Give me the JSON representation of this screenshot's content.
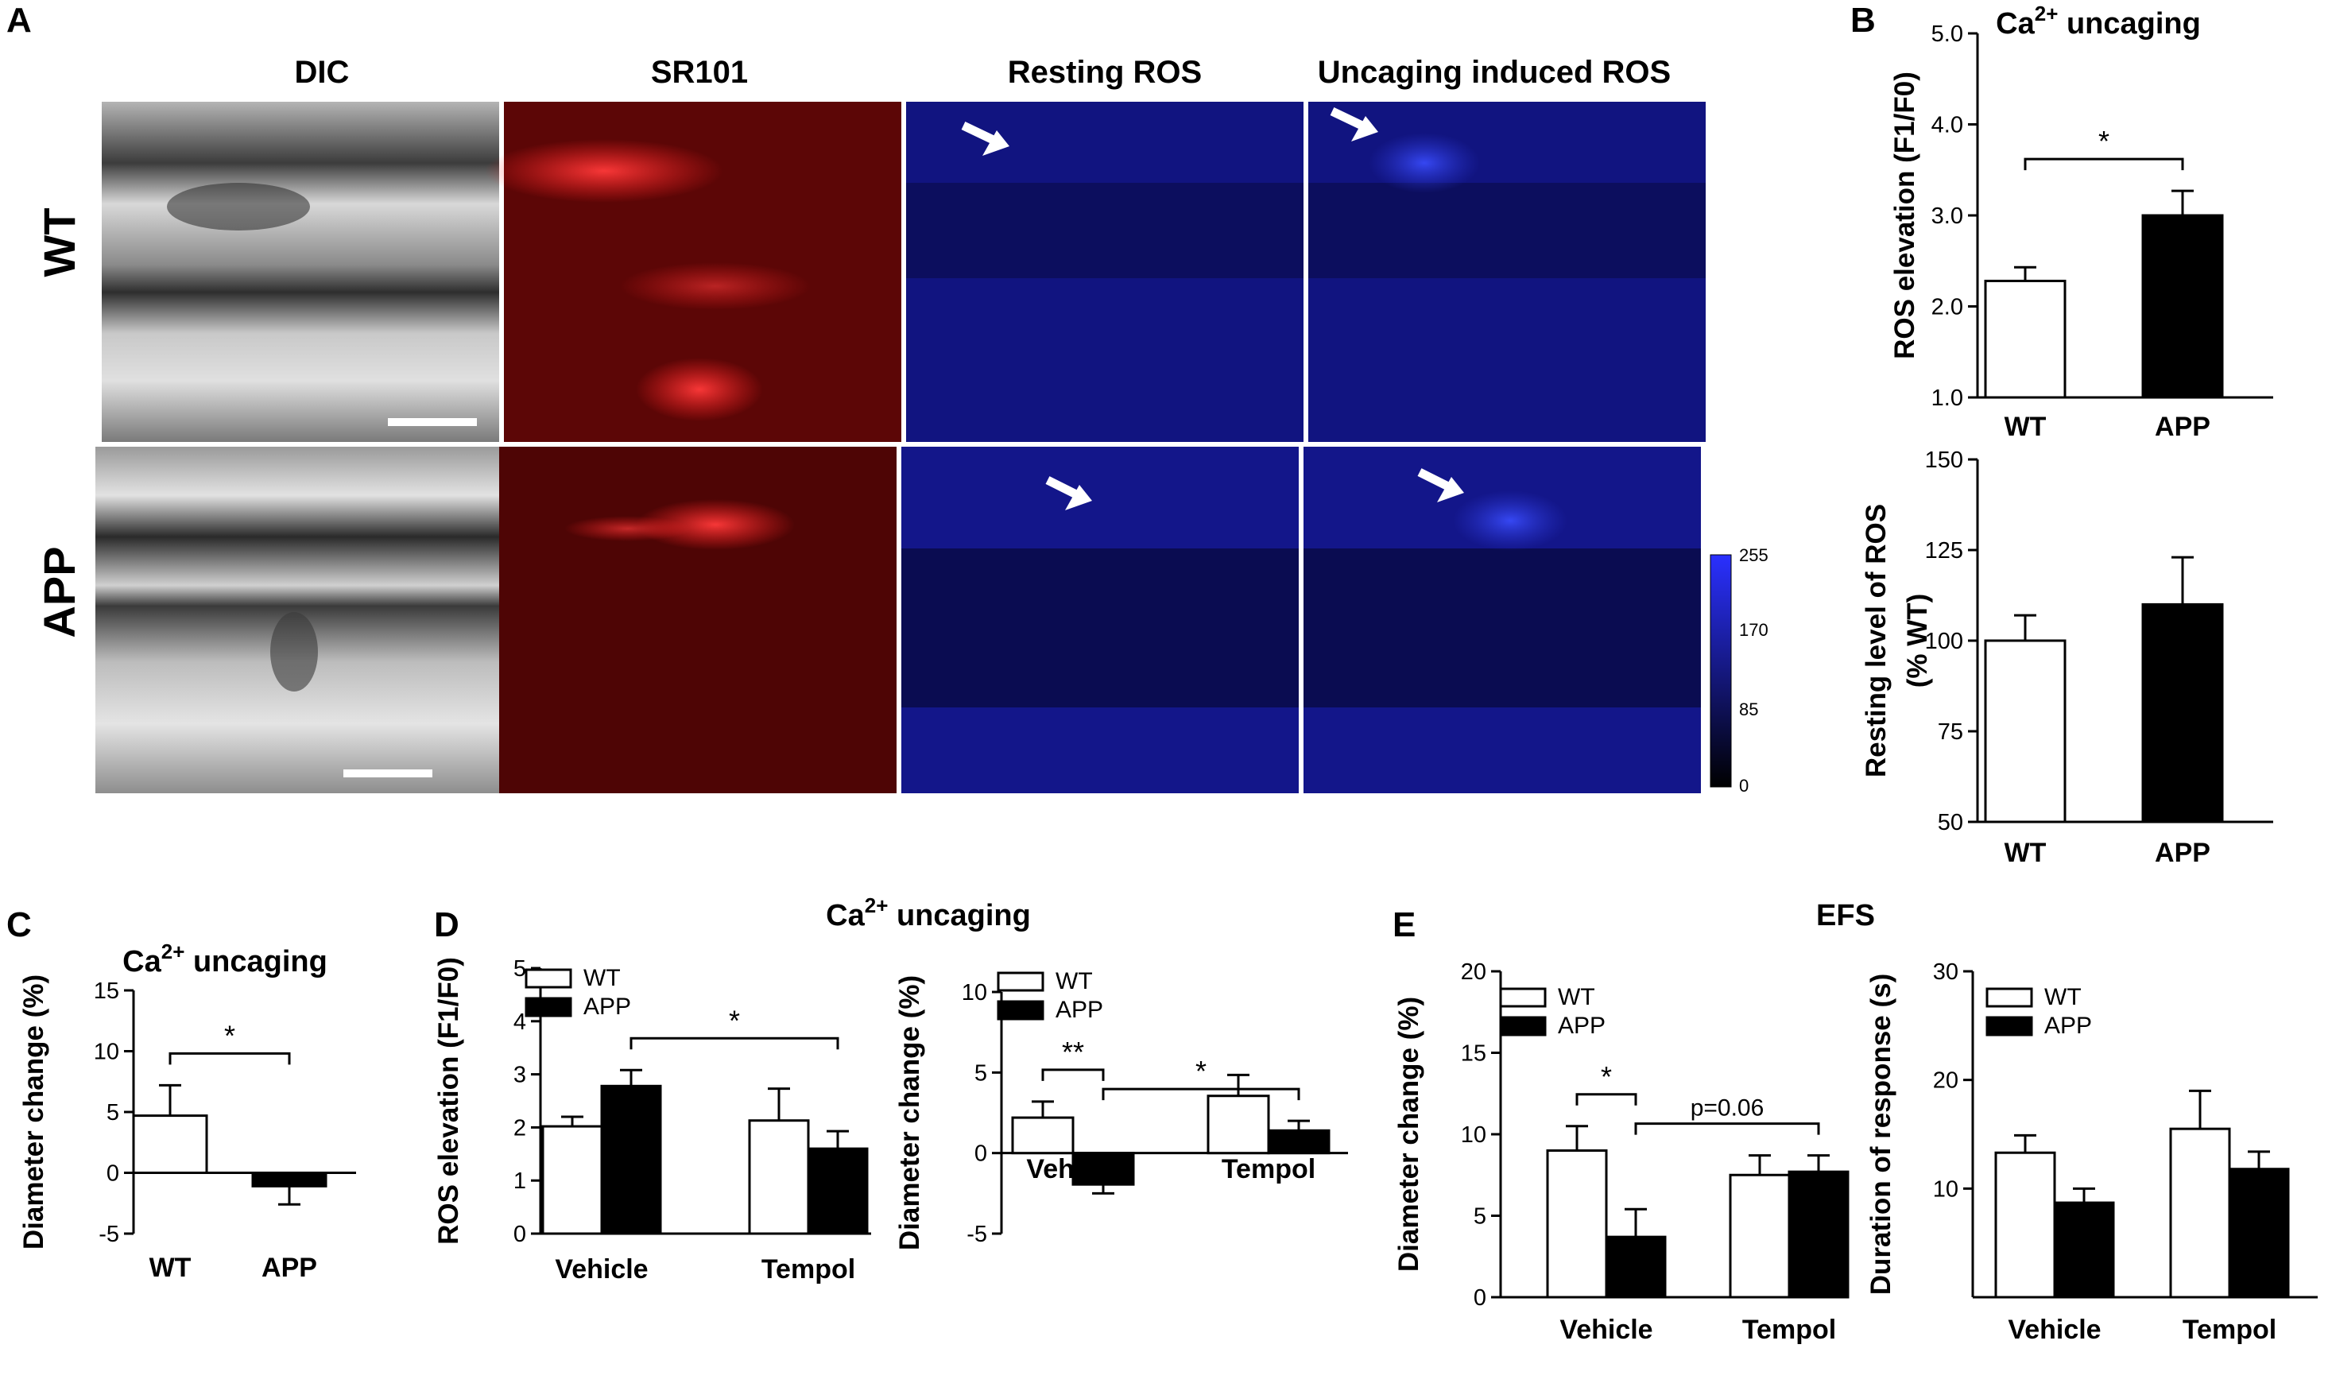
{
  "panel_letters": {
    "a": "A",
    "b": "B",
    "c": "C",
    "d": "D",
    "e": "E"
  },
  "micrographs": {
    "column_headers": [
      "DIC",
      "SR101",
      "Resting ROS",
      "Uncaging induced ROS"
    ],
    "row_labels": [
      "WT",
      "APP"
    ],
    "colorbar_ticks": [
      "255",
      "170",
      "85",
      "0"
    ],
    "colors": {
      "dic": "#9a9a9a",
      "sr101": "#b01010",
      "ros": "#15158a",
      "arrow": "#ffffff"
    }
  },
  "group_titles": {
    "d": {
      "main": "Ca",
      "sup": "2+",
      "rest": " uncaging"
    },
    "e": "EFS"
  },
  "colors": {
    "wt_fill": "#ffffff",
    "app_fill": "#000000",
    "stroke": "#000000"
  },
  "chart_data": [
    {
      "id": "B1",
      "type": "bar",
      "title": {
        "main": "Ca",
        "sup": "2+",
        "rest": " uncaging"
      },
      "ylabel": "ROS elevation (F1/F0)",
      "ylim": [
        1.0,
        5.0
      ],
      "yticks": [
        "1.0",
        "2.0",
        "3.0",
        "4.0",
        "5.0"
      ],
      "categories": [
        "WT",
        "APP"
      ],
      "values": [
        2.28,
        3.0
      ],
      "errors": [
        0.15,
        0.27
      ],
      "significance": [
        {
          "label": "*",
          "between": [
            "WT",
            "APP"
          ]
        }
      ]
    },
    {
      "id": "B2",
      "type": "bar",
      "ylabel": [
        "Resting level of ROS",
        "(% WT)"
      ],
      "ylim": [
        50,
        150
      ],
      "yticks": [
        "50",
        "75",
        "100",
        "125",
        "150"
      ],
      "categories": [
        "WT",
        "APP"
      ],
      "values": [
        100,
        110
      ],
      "errors": [
        7,
        13
      ]
    },
    {
      "id": "C",
      "type": "bar",
      "title": {
        "main": "Ca",
        "sup": "2+",
        "rest": " uncaging"
      },
      "ylabel": "Diameter change (%)",
      "ylim": [
        -5,
        15
      ],
      "yticks": [
        "-5",
        "0",
        "5",
        "10",
        "15"
      ],
      "categories": [
        "WT",
        "APP"
      ],
      "values": [
        4.7,
        -1.1
      ],
      "errors": [
        2.5,
        1.5
      ],
      "significance": [
        {
          "label": "*",
          "between": [
            "WT",
            "APP"
          ]
        }
      ]
    },
    {
      "id": "D1",
      "type": "bar",
      "ylabel": "ROS elevation (F1/F0)",
      "ylim": [
        0,
        5
      ],
      "yticks": [
        "0",
        "1",
        "2",
        "3",
        "4",
        "5"
      ],
      "categories": [
        "Vehicle",
        "Tempol"
      ],
      "series": [
        {
          "name": "WT",
          "values": [
            2.02,
            2.13
          ],
          "errors": [
            0.18,
            0.6
          ]
        },
        {
          "name": "APP",
          "values": [
            2.78,
            1.6
          ],
          "errors": [
            0.3,
            0.33
          ]
        }
      ],
      "significance": [
        {
          "label": "*",
          "between": [
            "Vehicle APP",
            "Tempol APP"
          ]
        }
      ]
    },
    {
      "id": "D2",
      "type": "bar",
      "ylabel": "Diameter change (%)",
      "ylim": [
        -5,
        10
      ],
      "yticks": [
        "-5",
        "0",
        "5",
        "10"
      ],
      "categories": [
        "Vehicle",
        "Tempol"
      ],
      "series": [
        {
          "name": "WT",
          "values": [
            2.2,
            3.55
          ],
          "errors": [
            1.0,
            1.3
          ]
        },
        {
          "name": "APP",
          "values": [
            -1.95,
            1.4
          ],
          "errors": [
            0.55,
            0.6
          ]
        }
      ],
      "significance": [
        {
          "label": "**",
          "between": [
            "Vehicle WT",
            "Vehicle APP"
          ]
        },
        {
          "label": "*",
          "between": [
            "Vehicle APP",
            "Tempol APP"
          ]
        }
      ]
    },
    {
      "id": "E1",
      "type": "bar",
      "ylabel": "Diameter change (%)",
      "ylim": [
        0,
        20
      ],
      "yticks": [
        "0",
        "5",
        "10",
        "15",
        "20"
      ],
      "categories": [
        "Vehicle",
        "Tempol"
      ],
      "series": [
        {
          "name": "WT",
          "values": [
            9.0,
            7.5
          ],
          "errors": [
            1.5,
            1.2
          ]
        },
        {
          "name": "APP",
          "values": [
            3.7,
            7.7
          ],
          "errors": [
            1.7,
            1.0
          ]
        }
      ],
      "significance": [
        {
          "label": "*",
          "between": [
            "Vehicle WT",
            "Vehicle APP"
          ]
        },
        {
          "label": "p=0.06",
          "between": [
            "Vehicle APP",
            "Tempol APP"
          ]
        }
      ]
    },
    {
      "id": "E2",
      "type": "bar",
      "ylabel": "Duration of response (s)",
      "ylim": [
        0,
        30
      ],
      "yticks": [
        "10",
        "20",
        "30"
      ],
      "categories": [
        "Vehicle",
        "Tempol"
      ],
      "series": [
        {
          "name": "WT",
          "values": [
            13.3,
            15.5
          ],
          "errors": [
            1.6,
            3.5
          ]
        },
        {
          "name": "APP",
          "values": [
            8.7,
            11.8
          ],
          "errors": [
            1.3,
            1.6
          ]
        }
      ]
    }
  ]
}
